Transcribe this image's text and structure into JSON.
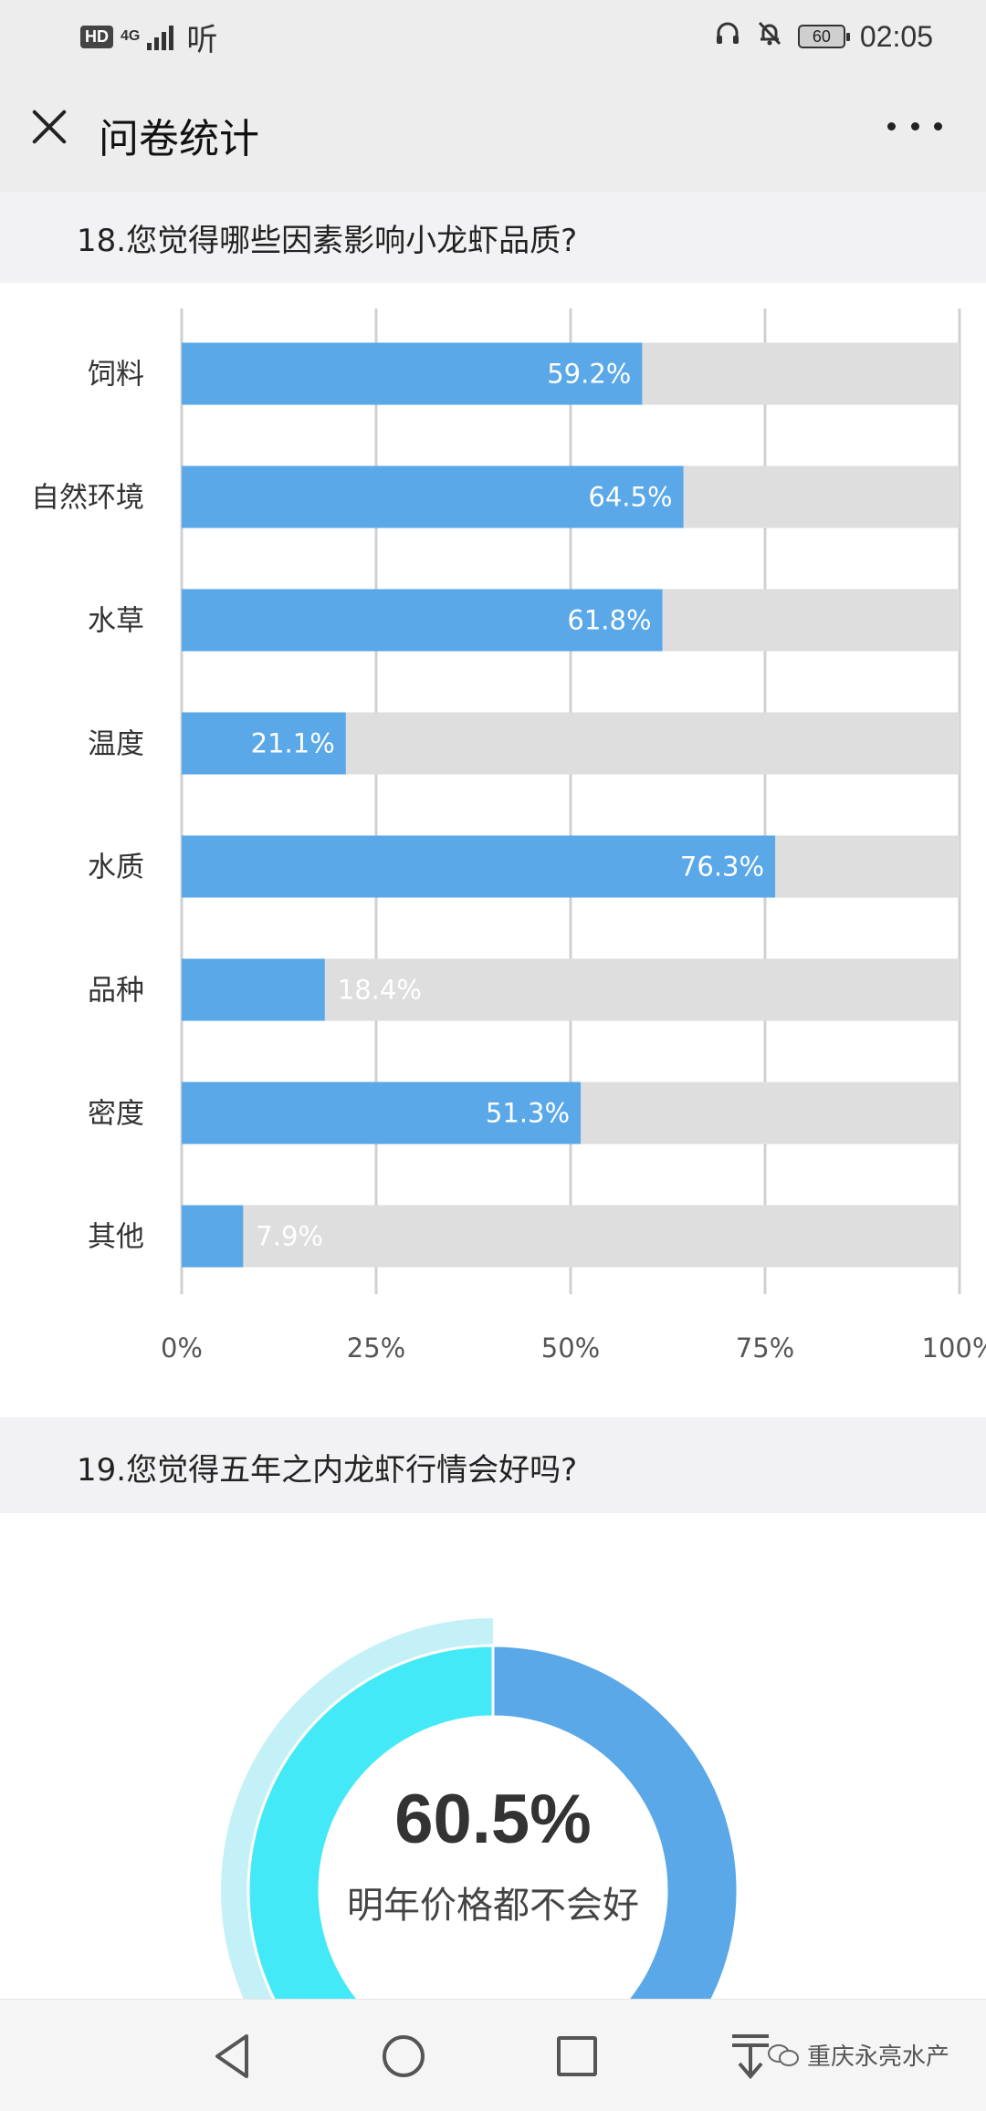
{
  "status_bar": {
    "hd_badge": "HD",
    "network": "4G",
    "listen_icon": "听",
    "battery": "60",
    "time": "02:05",
    "icons": [
      "headphones-icon",
      "bell-off-icon",
      "battery-icon"
    ]
  },
  "header": {
    "title": "问卷统计",
    "close_icon": "close-icon",
    "more_icon": "more-icon"
  },
  "questions": {
    "q18": "18.您觉得哪些因素影响小龙虾品质?",
    "q19": "19.您觉得五年之内龙虾行情会好吗?"
  },
  "chart_data": [
    {
      "type": "bar",
      "orientation": "horizontal",
      "categories": [
        "饲料",
        "自然环境",
        "水草",
        "温度",
        "水质",
        "品种",
        "密度",
        "其他"
      ],
      "values": [
        59.2,
        64.5,
        61.8,
        21.1,
        76.3,
        18.4,
        51.3,
        7.9
      ],
      "value_labels": [
        "59.2%",
        "64.5%",
        "61.8%",
        "21.1%",
        "76.3%",
        "18.4%",
        "51.3%",
        "7.9%"
      ],
      "xlim": [
        0,
        100
      ],
      "x_ticks": [
        "0%",
        "25%",
        "50%",
        "75%",
        "100%"
      ],
      "grid": true,
      "bar_color": "#5aa8e8",
      "track_color": "#dedede"
    },
    {
      "type": "pie",
      "style": "donut",
      "values": [
        60.5,
        39.5
      ],
      "center_value": "60.5%",
      "center_label": "明年价格都不会好",
      "colors": [
        "#5aa8e8",
        "#44e9f7"
      ],
      "highlight_ring_color": "#c4f1f7"
    }
  ],
  "nav_bar": {
    "icons": [
      "back-icon",
      "home-icon",
      "recent-apps-icon",
      "download-icon"
    ],
    "watermark": "重庆永亮水产"
  }
}
